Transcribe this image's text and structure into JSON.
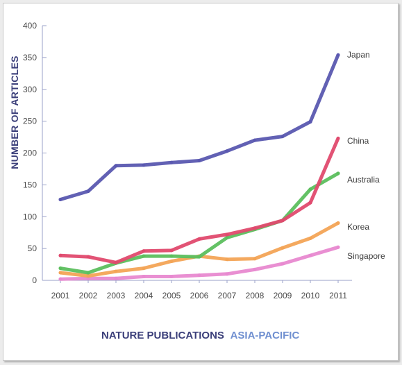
{
  "chart_data": {
    "type": "line",
    "title": "NATURE PUBLICATIONS ASIA-PACIFIC",
    "title_parts": [
      {
        "text": "NATURE PUBLICATIONS",
        "color": "#3b3f7a"
      },
      {
        "text": "ASIA-PACIFIC",
        "color": "#6f8fd0"
      }
    ],
    "xlabel": "",
    "ylabel": "NUMBER OF ARTICLES",
    "x": [
      "2001",
      "2002",
      "2003",
      "2004",
      "2005",
      "2006",
      "2007",
      "2008",
      "2009",
      "2010",
      "2011"
    ],
    "ylim": [
      0,
      400
    ],
    "yticks": [
      0,
      50,
      100,
      150,
      200,
      250,
      300,
      350,
      400
    ],
    "grid": false,
    "legend": "labels at line ends",
    "series": [
      {
        "name": "Japan",
        "color": "#5a58b0",
        "values": [
          127,
          140,
          180,
          181,
          185,
          188,
          203,
          220,
          226,
          249,
          354
        ]
      },
      {
        "name": "China",
        "color": "#e04a6e",
        "values": [
          39,
          37,
          28,
          46,
          47,
          65,
          72,
          82,
          94,
          122,
          223
        ]
      },
      {
        "name": "Australia",
        "color": "#5cbf5e",
        "values": [
          19,
          12,
          27,
          38,
          38,
          37,
          67,
          80,
          94,
          143,
          168
        ]
      },
      {
        "name": "Korea",
        "color": "#f3a456",
        "values": [
          12,
          7,
          14,
          19,
          30,
          38,
          33,
          34,
          51,
          66,
          90
        ]
      },
      {
        "name": "Singapore",
        "color": "#e889d0",
        "values": [
          2,
          3,
          3,
          6,
          6,
          8,
          10,
          17,
          26,
          39,
          52
        ]
      }
    ]
  }
}
